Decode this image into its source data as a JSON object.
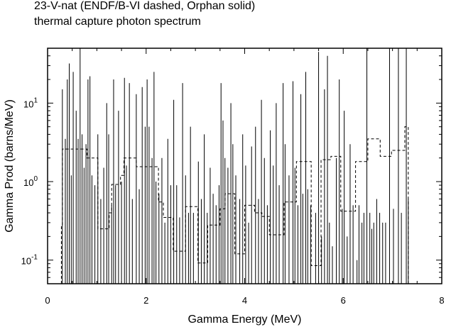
{
  "header": {
    "title": "23-V-nat (ENDF/B-VI dashed, Orphan solid)",
    "subtitle": "thermal capture photon spectrum"
  },
  "chart_data": {
    "type": "line",
    "title": "23-V-nat (ENDF/B-VI dashed, Orphan solid)",
    "subtitle": "thermal capture photon spectrum",
    "xlabel": "Gamma Energy (MeV)",
    "ylabel": "Gamma Prod (barns/MeV)",
    "xlim": [
      0,
      8
    ],
    "ylim": [
      0.05,
      50
    ],
    "yscale": "log",
    "grid": false,
    "x_ticks": [
      {
        "value": 0,
        "label": "0"
      },
      {
        "value": 2,
        "label": "2"
      },
      {
        "value": 4,
        "label": "4"
      },
      {
        "value": 6,
        "label": "6"
      },
      {
        "value": 8,
        "label": "8"
      }
    ],
    "y_ticks": [
      {
        "value": 0.1,
        "label": "10",
        "exp": "-1"
      },
      {
        "value": 1,
        "label": "10",
        "exp": "0"
      },
      {
        "value": 10,
        "label": "10",
        "exp": "1"
      }
    ],
    "series": [
      {
        "name": "ENDF/B-VI",
        "style": "dashed",
        "color": "#000000",
        "steps": [
          [
            0.28,
            0.3,
            0.27
          ],
          [
            0.3,
            0.8,
            2.6
          ],
          [
            0.8,
            1.02,
            2.0
          ],
          [
            1.02,
            1.25,
            0.25
          ],
          [
            1.25,
            1.3,
            0.4
          ],
          [
            1.3,
            1.48,
            0.92
          ],
          [
            1.48,
            1.55,
            1.2
          ],
          [
            1.55,
            1.8,
            2.0
          ],
          [
            1.8,
            2.25,
            1.55
          ],
          [
            2.25,
            2.35,
            0.55
          ],
          [
            2.35,
            2.55,
            0.35
          ],
          [
            2.55,
            2.8,
            0.13
          ],
          [
            2.8,
            3.05,
            0.48
          ],
          [
            3.05,
            3.25,
            0.092
          ],
          [
            3.25,
            3.5,
            0.28
          ],
          [
            3.5,
            3.6,
            0.45
          ],
          [
            3.6,
            3.8,
            0.7
          ],
          [
            3.8,
            4.0,
            0.12
          ],
          [
            4.0,
            4.2,
            0.5
          ],
          [
            4.2,
            4.35,
            0.4
          ],
          [
            4.35,
            4.5,
            0.36
          ],
          [
            4.5,
            4.8,
            0.21
          ],
          [
            4.8,
            5.05,
            0.55
          ],
          [
            5.05,
            5.35,
            1.8
          ],
          [
            5.35,
            5.55,
            0.085
          ],
          [
            5.55,
            5.75,
            1.9
          ],
          [
            5.75,
            5.95,
            2.1
          ],
          [
            5.95,
            6.25,
            0.42
          ],
          [
            6.25,
            6.5,
            1.8
          ],
          [
            6.5,
            6.75,
            3.5
          ],
          [
            6.75,
            6.98,
            2.1
          ],
          [
            6.98,
            7.25,
            2.5
          ],
          [
            7.25,
            7.32,
            5.0
          ]
        ]
      },
      {
        "name": "Orphan",
        "style": "solid",
        "color": "#000000",
        "peaks": [
          [
            0.3,
            15
          ],
          [
            0.36,
            3.5
          ],
          [
            0.4,
            20
          ],
          [
            0.44,
            32
          ],
          [
            0.48,
            1.2
          ],
          [
            0.52,
            25
          ],
          [
            0.58,
            8
          ],
          [
            0.62,
            3.5
          ],
          [
            0.66,
            50
          ],
          [
            0.7,
            4
          ],
          [
            0.74,
            1.5
          ],
          [
            0.78,
            3
          ],
          [
            0.82,
            20
          ],
          [
            0.86,
            22
          ],
          [
            0.9,
            1.2
          ],
          [
            0.96,
            0.9
          ],
          [
            1.02,
            4
          ],
          [
            1.08,
            0.6
          ],
          [
            1.14,
            1.5
          ],
          [
            1.2,
            10
          ],
          [
            1.24,
            4
          ],
          [
            1.3,
            0.5
          ],
          [
            1.34,
            20
          ],
          [
            1.38,
            0.9
          ],
          [
            1.44,
            8
          ],
          [
            1.5,
            1.0
          ],
          [
            1.56,
            21
          ],
          [
            1.6,
            1.6
          ],
          [
            1.66,
            18
          ],
          [
            1.72,
            0.6
          ],
          [
            1.8,
            13
          ],
          [
            1.86,
            0.8
          ],
          [
            1.92,
            16
          ],
          [
            1.98,
            5
          ],
          [
            2.02,
            20
          ],
          [
            2.06,
            5
          ],
          [
            2.12,
            2
          ],
          [
            2.16,
            25
          ],
          [
            2.2,
            1.0
          ],
          [
            2.26,
            0.7
          ],
          [
            2.32,
            2
          ],
          [
            2.38,
            0.3
          ],
          [
            2.44,
            3.5
          ],
          [
            2.5,
            0.9
          ],
          [
            2.56,
            11
          ],
          [
            2.62,
            0.9
          ],
          [
            2.68,
            0.35
          ],
          [
            2.74,
            18
          ],
          [
            2.8,
            1.2
          ],
          [
            2.86,
            0.4
          ],
          [
            2.9,
            5
          ],
          [
            2.96,
            0.4
          ],
          [
            3.06,
            1.8
          ],
          [
            3.12,
            0.6
          ],
          [
            3.18,
            4
          ],
          [
            3.24,
            0.4
          ],
          [
            3.3,
            1.5
          ],
          [
            3.36,
            0.7
          ],
          [
            3.42,
            0.5
          ],
          [
            3.48,
            0.9
          ],
          [
            3.52,
            18
          ],
          [
            3.56,
            6
          ],
          [
            3.6,
            2
          ],
          [
            3.66,
            1.5
          ],
          [
            3.72,
            10
          ],
          [
            3.76,
            3
          ],
          [
            3.82,
            1.2
          ],
          [
            3.9,
            0.6
          ],
          [
            3.96,
            4
          ],
          [
            4.02,
            1.6
          ],
          [
            4.08,
            0.3
          ],
          [
            4.14,
            2.8
          ],
          [
            4.22,
            5
          ],
          [
            4.28,
            0.6
          ],
          [
            4.34,
            11
          ],
          [
            4.4,
            2
          ],
          [
            4.46,
            0.5
          ],
          [
            4.52,
            4.5
          ],
          [
            4.58,
            1.6
          ],
          [
            4.64,
            10
          ],
          [
            4.7,
            0.9
          ],
          [
            4.78,
            18
          ],
          [
            4.82,
            3
          ],
          [
            4.9,
            1.2
          ],
          [
            4.98,
            19
          ],
          [
            5.02,
            1.5
          ],
          [
            5.08,
            0.5
          ],
          [
            5.14,
            13
          ],
          [
            5.18,
            0.7
          ],
          [
            5.24,
            25
          ],
          [
            5.28,
            0.8
          ],
          [
            5.34,
            0.5
          ],
          [
            5.44,
            0.4
          ],
          [
            5.5,
            45
          ],
          [
            5.56,
            0.2
          ],
          [
            5.62,
            15
          ],
          [
            5.68,
            40
          ],
          [
            5.72,
            0.3
          ],
          [
            5.78,
            0.15
          ],
          [
            5.86,
            2
          ],
          [
            5.92,
            20
          ],
          [
            5.98,
            0.45
          ],
          [
            6.02,
            8
          ],
          [
            6.08,
            0.2
          ],
          [
            6.14,
            3
          ],
          [
            6.2,
            0.5
          ],
          [
            6.28,
            0.1
          ],
          [
            6.32,
            0.5
          ],
          [
            6.38,
            0.3
          ],
          [
            6.42,
            0.4
          ],
          [
            6.48,
            50
          ],
          [
            6.54,
            0.4
          ],
          [
            6.58,
            0.25
          ],
          [
            6.62,
            0.3
          ],
          [
            6.68,
            0.6
          ],
          [
            6.74,
            0.4
          ],
          [
            6.8,
            0.3
          ],
          [
            6.86,
            0.3
          ],
          [
            6.94,
            50
          ],
          [
            7.02,
            0.45
          ],
          [
            7.12,
            50
          ],
          [
            7.18,
            0.4
          ],
          [
            7.28,
            50
          ],
          [
            7.32,
            0.6
          ]
        ]
      }
    ]
  }
}
